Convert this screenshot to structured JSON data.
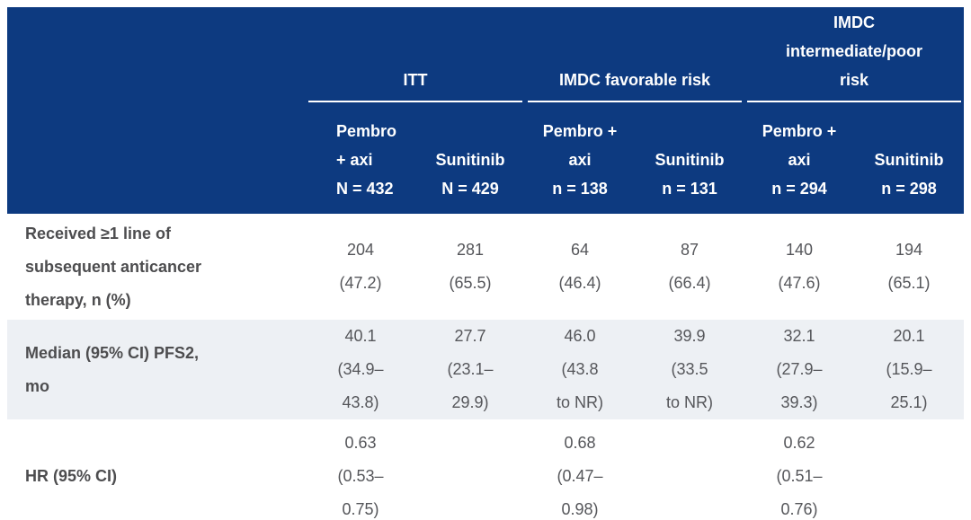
{
  "colors": {
    "header_bg": "#0d3a80",
    "header_text": "#ffffff",
    "row_alt_bg": "#edf0f4",
    "label_text": "#4d4d4f",
    "value_text": "#55565a"
  },
  "table": {
    "header": {
      "groups": [
        {
          "label": "ITT"
        },
        {
          "label": "IMDC favorable risk"
        },
        {
          "label": "IMDC\nintermediate/poor\nrisk"
        }
      ],
      "columns": [
        {
          "lines": "Pembro\n+ axi\nN = 432"
        },
        {
          "lines": "Sunitinib\nN = 429"
        },
        {
          "lines": "Pembro +\naxi\nn = 138"
        },
        {
          "lines": "Sunitinib\nn = 131"
        },
        {
          "lines": "Pembro +\naxi\nn = 294"
        },
        {
          "lines": "Sunitinib\nn = 298"
        }
      ]
    },
    "rows": [
      {
        "label": "Received ≥1 line of\nsubsequent anticancer\ntherapy, n (%)",
        "values": [
          "204\n(47.2)",
          "281\n(65.5)",
          "64\n(46.4)",
          "87\n(66.4)",
          "140\n(47.6)",
          "194\n(65.1)"
        ]
      },
      {
        "label": "Median (95% CI) PFS2,\nmo",
        "values": [
          "40.1\n(34.9–\n43.8)",
          "27.7\n(23.1–\n29.9)",
          "46.0\n(43.8\nto NR)",
          "39.9\n(33.5\nto NR)",
          "32.1\n(27.9–\n39.3)",
          "20.1\n(15.9–\n25.1)"
        ]
      },
      {
        "label": "HR (95% CI)",
        "values": [
          "0.63\n(0.53–\n0.75)",
          "",
          "0.68\n(0.47–\n0.98)",
          "",
          "0.62\n(0.51–\n0.76)",
          ""
        ]
      }
    ]
  }
}
